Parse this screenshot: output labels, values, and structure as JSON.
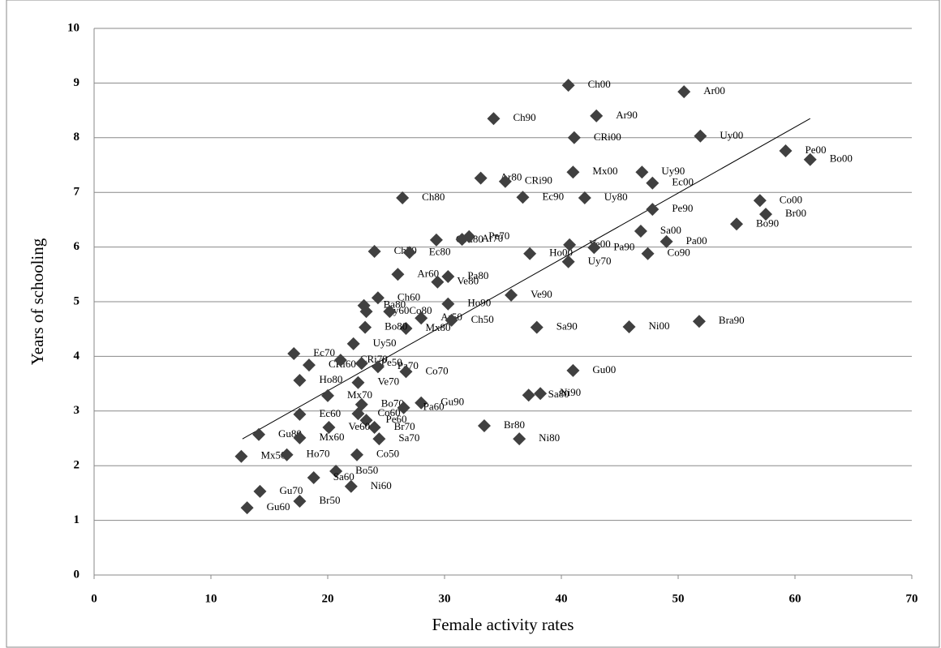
{
  "chart_data": {
    "type": "scatter",
    "x_label": "Female activity rates",
    "y_label": "Years of schooling",
    "xlim": [
      0,
      70
    ],
    "xticks": [
      0,
      10,
      20,
      30,
      40,
      50,
      60,
      70
    ],
    "ylim": [
      0,
      10
    ],
    "yticks": [
      0,
      1,
      2,
      3,
      4,
      5,
      6,
      7,
      8,
      9,
      10
    ],
    "grid": true,
    "color": "#404040",
    "labels": [
      "Ch00",
      "Ar00",
      "Ar90",
      "Ch90",
      "CRi00",
      "Uy00",
      "Pe00",
      "Bo00",
      "Mx00",
      "Uy90",
      "Ec00",
      "Ar80",
      "CRi90",
      "Ch80",
      "Ec90",
      "Uy80",
      "Co00",
      "Pe90",
      "Br00",
      "Bo90",
      "Sa00",
      "Pa00",
      "CRi80",
      "Ar70",
      "Pe70",
      "Ho00",
      "Ve00",
      "Pa90",
      "Uy70",
      "Co90",
      "Ch70",
      "Ec80",
      "Ar60",
      "Pa80",
      "Ve80",
      "Ve90",
      "Ch60",
      "Ba80",
      "Uy60",
      "Co80",
      "Ho90",
      "Ar50",
      "Ch50",
      "Mx80",
      "Bo80",
      "Sa90",
      "Ni00",
      "Bra90",
      "Uy50",
      "Ec70",
      "CRi60",
      "CRi70",
      "Pe50",
      "Pa70",
      "Co70",
      "Ho80",
      "Ve70",
      "Gu00",
      "Ni90",
      "Sa80",
      "Mx70",
      "Bo70",
      "Gu90",
      "Pa60",
      "Co60",
      "Ec60",
      "Pe60",
      "Br70",
      "Ve60",
      "Sa70",
      "Br80",
      "Ni80",
      "Gu80",
      "Mx60",
      "Mx50",
      "Ho70",
      "Co50",
      "Bo50",
      "Sa60",
      "Ni60",
      "Gu70",
      "Br50",
      "Gu60"
    ],
    "x": [
      40.6,
      50.5,
      43.0,
      34.2,
      41.1,
      51.9,
      59.2,
      61.3,
      41.0,
      46.9,
      47.8,
      33.1,
      35.2,
      26.4,
      36.7,
      42.0,
      57.0,
      47.8,
      57.5,
      55.0,
      46.8,
      49.0,
      29.3,
      31.5,
      32.1,
      37.3,
      40.7,
      42.8,
      40.6,
      47.4,
      24.0,
      27.0,
      26.0,
      30.3,
      29.4,
      35.7,
      24.3,
      23.1,
      23.3,
      25.3,
      30.3,
      28.0,
      30.6,
      26.7,
      23.2,
      37.9,
      45.8,
      51.8,
      22.2,
      17.1,
      18.4,
      21.1,
      22.9,
      24.3,
      26.7,
      17.6,
      22.6,
      41.0,
      38.2,
      37.2,
      20.0,
      22.9,
      28.0,
      26.5,
      22.6,
      17.6,
      23.3,
      24.0,
      20.1,
      24.4,
      33.4,
      36.4,
      14.1,
      17.6,
      12.6,
      16.5,
      22.5,
      20.7,
      18.8,
      22.0,
      14.2,
      17.6,
      13.1
    ],
    "values": [
      8.96,
      8.84,
      8.4,
      8.35,
      8.0,
      8.03,
      7.76,
      7.6,
      7.37,
      7.37,
      7.17,
      7.26,
      7.2,
      6.9,
      6.91,
      6.9,
      6.85,
      6.69,
      6.6,
      6.42,
      6.29,
      6.1,
      6.13,
      6.14,
      6.19,
      5.88,
      6.04,
      5.99,
      5.73,
      5.88,
      5.92,
      5.9,
      5.5,
      5.46,
      5.36,
      5.12,
      5.07,
      4.93,
      4.82,
      4.82,
      4.96,
      4.7,
      4.66,
      4.51,
      4.53,
      4.53,
      4.54,
      4.64,
      4.23,
      4.05,
      3.84,
      3.93,
      3.87,
      3.81,
      3.72,
      3.56,
      3.52,
      3.74,
      3.32,
      3.29,
      3.28,
      3.12,
      3.15,
      3.06,
      2.95,
      2.94,
      2.83,
      2.7,
      2.7,
      2.49,
      2.73,
      2.49,
      2.57,
      2.51,
      2.17,
      2.2,
      2.2,
      1.9,
      1.78,
      1.62,
      1.53,
      1.35,
      1.23
    ],
    "trendline": {
      "x": [
        12.7,
        61.3
      ],
      "y": [
        2.49,
        8.35
      ]
    }
  }
}
